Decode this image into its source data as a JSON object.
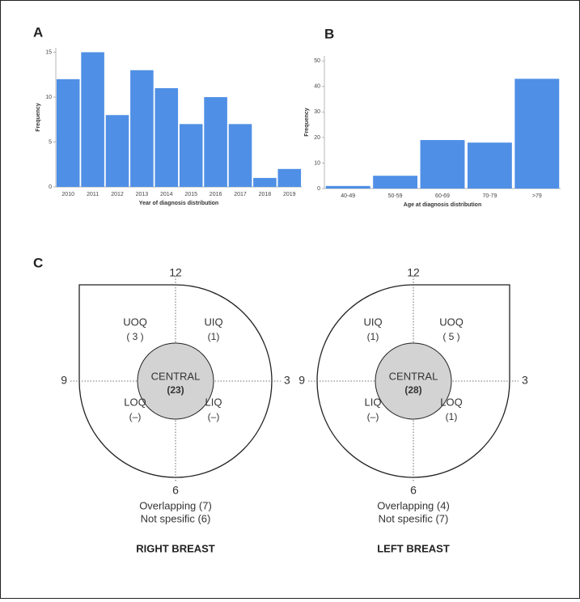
{
  "chart_data": [
    {
      "type": "bar",
      "panel": "A",
      "ylabel": "Frequency",
      "xlabel": "Year of diagnosis distribution",
      "categories": [
        "2010",
        "2011",
        "2012",
        "2013",
        "2014",
        "2015",
        "2016",
        "2017",
        "2018",
        "2019"
      ],
      "values": [
        12,
        15,
        8,
        13,
        11,
        7,
        10,
        7,
        1,
        2
      ],
      "color": "#4f8fe6",
      "ylim": [
        0,
        15.5
      ],
      "yticks": [
        0,
        5,
        10,
        15
      ]
    },
    {
      "type": "bar",
      "panel": "B",
      "ylabel": "Frequency",
      "xlabel": "Age at diagnosis distribution",
      "categories": [
        "40-49",
        "50-59",
        "60-69",
        "70-79",
        ">79"
      ],
      "values": [
        1,
        5,
        19,
        18,
        43
      ],
      "color": "#4f8fe6",
      "ylim": [
        0,
        52
      ],
      "yticks": [
        0,
        10,
        20,
        30,
        40,
        50
      ]
    }
  ],
  "diagram": {
    "panel": "C",
    "breasts": [
      {
        "title": "RIGHT BREAST",
        "clock": {
          "top": "12",
          "left": "9",
          "right": "3",
          "bottom": "6"
        },
        "quadrants": {
          "upper_left": {
            "name": "UOQ",
            "count": "( 3 )"
          },
          "upper_right": {
            "name": "UIQ",
            "count": "(1)"
          },
          "lower_left": {
            "name": "LOQ",
            "count": "(–)"
          },
          "lower_right": {
            "name": "LIQ",
            "count": "(–)"
          }
        },
        "central": {
          "name": "CENTRAL",
          "count": "(23)"
        },
        "overlapping": "Overlapping (7)",
        "not_specific": "Not spesific (6)"
      },
      {
        "title": "LEFT BREAST",
        "clock": {
          "top": "12",
          "left": "9",
          "right": "3",
          "bottom": "6"
        },
        "quadrants": {
          "upper_left": {
            "name": "UIQ",
            "count": "(1)"
          },
          "upper_right": {
            "name": "UOQ",
            "count": "( 5 )"
          },
          "lower_left": {
            "name": "LIQ",
            "count": "(–)"
          },
          "lower_right": {
            "name": "LOQ",
            "count": "(1)"
          }
        },
        "central": {
          "name": "CENTRAL",
          "count": "(28)"
        },
        "overlapping": "Overlapping (4)",
        "not_specific": "Not spesific (7)"
      }
    ]
  }
}
